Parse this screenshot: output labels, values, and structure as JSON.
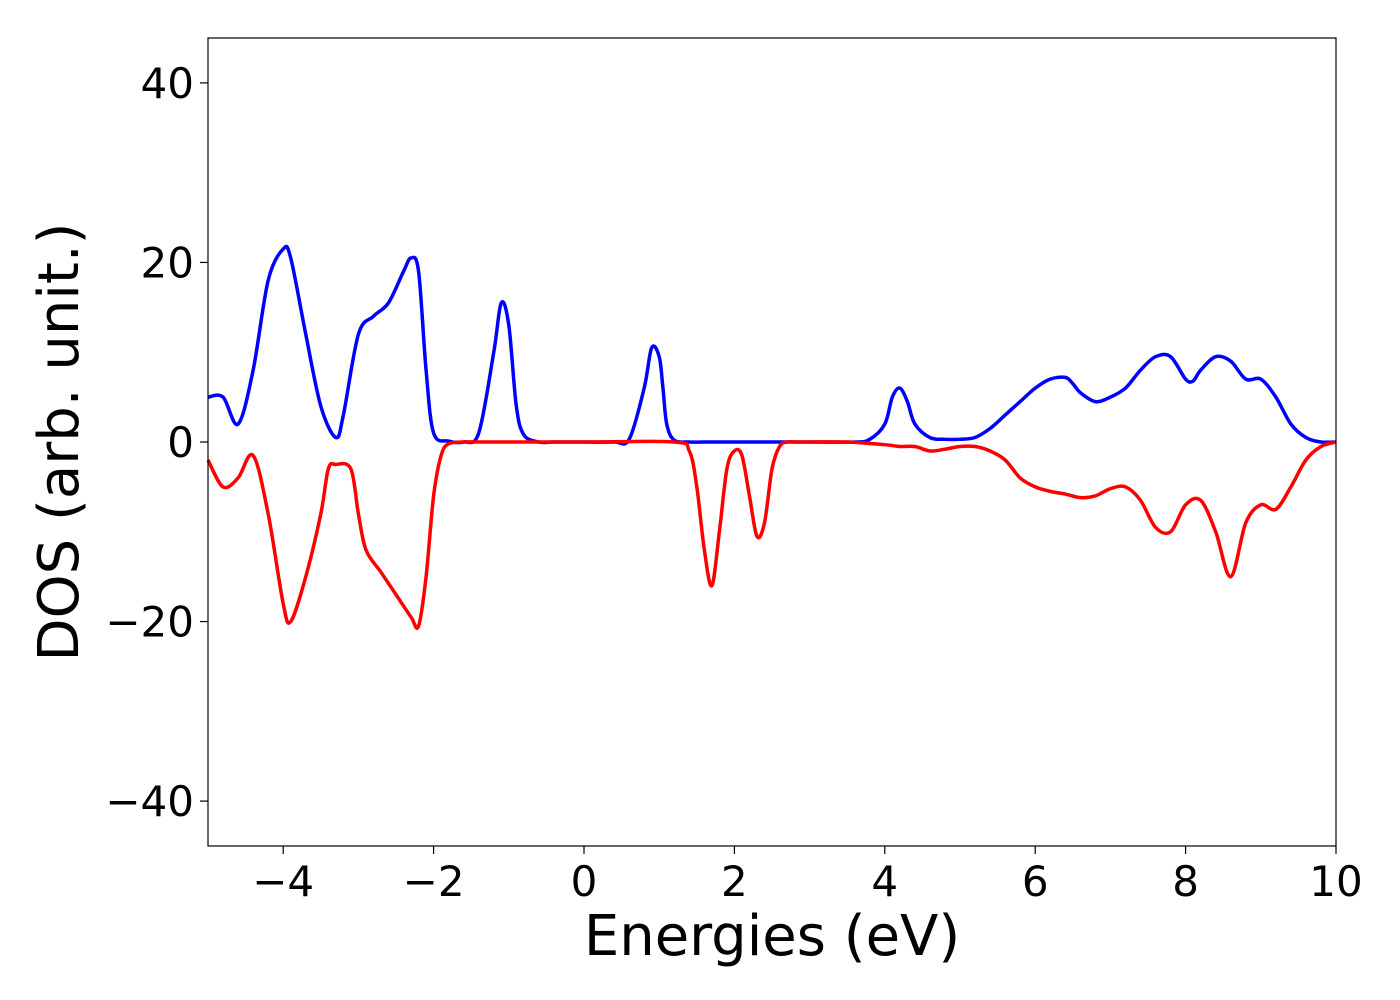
{
  "chart_data": {
    "type": "line",
    "title": "",
    "xlabel": "Energies (eV)",
    "ylabel": "DOS (arb. unit.)",
    "xlim": [
      -5,
      10
    ],
    "ylim": [
      -45,
      45
    ],
    "xticks": [
      -4,
      -2,
      0,
      2,
      4,
      6,
      8,
      10
    ],
    "xtick_labels": [
      "−4",
      "−2",
      "0",
      "2",
      "4",
      "6",
      "8",
      "10"
    ],
    "yticks": [
      -40,
      -20,
      0,
      20,
      40
    ],
    "ytick_labels": [
      "−40",
      "−20",
      "0",
      "20",
      "40"
    ],
    "grid": false,
    "legend": "none",
    "series": [
      {
        "color": "#0000ff",
        "x": [
          -5,
          -4.8,
          -4.6,
          -4.4,
          -4.2,
          -4.0,
          -3.9,
          -3.7,
          -3.5,
          -3.3,
          -3.2,
          -3.0,
          -2.8,
          -2.6,
          -2.4,
          -2.3,
          -2.2,
          -2.1,
          -2.0,
          -1.8,
          -1.6,
          -1.4,
          -1.2,
          -1.1,
          -1.0,
          -0.9,
          -0.8,
          -0.6,
          -0.4,
          0,
          0.4,
          0.6,
          0.8,
          0.9,
          1.0,
          1.05,
          1.1,
          1.2,
          1.4,
          1.6,
          2,
          3,
          3.6,
          3.8,
          4.0,
          4.1,
          4.2,
          4.3,
          4.4,
          4.6,
          4.8,
          5.0,
          5.2,
          5.4,
          5.6,
          5.8,
          6.0,
          6.2,
          6.4,
          6.5,
          6.6,
          6.8,
          7.0,
          7.2,
          7.4,
          7.6,
          7.8,
          8.0,
          8.1,
          8.2,
          8.4,
          8.6,
          8.8,
          9.0,
          9.2,
          9.4,
          9.6,
          9.8,
          10.0
        ],
        "y": [
          5,
          5,
          2,
          8,
          18,
          21.5,
          20.5,
          12,
          4,
          0.5,
          3,
          12,
          14,
          15.5,
          19,
          20.5,
          19,
          8,
          1,
          0.1,
          0,
          1,
          10,
          15.5,
          13,
          4,
          0.8,
          0,
          0,
          0,
          0,
          0.3,
          6,
          10.5,
          9.5,
          6,
          2,
          0.2,
          0,
          0,
          0,
          0,
          0,
          0.3,
          2,
          5,
          6,
          4.5,
          2,
          0.5,
          0.3,
          0.3,
          0.5,
          1.5,
          3,
          4.5,
          6,
          7,
          7.2,
          6.5,
          5.5,
          4.5,
          5,
          6,
          8,
          9.5,
          9.5,
          7,
          6.8,
          8,
          9.5,
          9,
          7,
          7,
          5,
          2,
          0.5,
          0,
          0
        ]
      },
      {
        "color": "#ff0000",
        "x": [
          -5,
          -4.8,
          -4.6,
          -4.4,
          -4.2,
          -4.0,
          -3.9,
          -3.7,
          -3.5,
          -3.4,
          -3.3,
          -3.1,
          -3.0,
          -2.9,
          -2.7,
          -2.5,
          -2.3,
          -2.2,
          -2.1,
          -2.0,
          -1.9,
          -1.8,
          -1.6,
          -1.4,
          0,
          1.2,
          1.4,
          1.5,
          1.6,
          1.7,
          1.8,
          1.9,
          2.0,
          2.1,
          2.2,
          2.3,
          2.4,
          2.5,
          2.6,
          2.7,
          2.8,
          3.0,
          3.5,
          4.0,
          4.2,
          4.4,
          4.6,
          4.8,
          5.0,
          5.2,
          5.4,
          5.6,
          5.8,
          6.0,
          6.2,
          6.4,
          6.6,
          6.8,
          7.0,
          7.2,
          7.4,
          7.6,
          7.8,
          8.0,
          8.2,
          8.4,
          8.6,
          8.8,
          9.0,
          9.2,
          9.4,
          9.6,
          9.8,
          10.0
        ],
        "y": [
          -2,
          -5,
          -4,
          -1.5,
          -8,
          -18,
          -20,
          -15,
          -8,
          -3,
          -2.5,
          -3,
          -8,
          -12,
          -14.5,
          -17,
          -19.5,
          -20.5,
          -15,
          -6,
          -1.5,
          -0.2,
          0,
          0,
          0,
          0,
          -1,
          -5,
          -12,
          -16,
          -10,
          -3,
          -1,
          -1.5,
          -6,
          -10.5,
          -9,
          -3,
          -0.5,
          0,
          0,
          0,
          0,
          -0.3,
          -0.5,
          -0.5,
          -1,
          -0.8,
          -0.5,
          -0.5,
          -1,
          -2,
          -4,
          -5,
          -5.5,
          -5.8,
          -6.2,
          -6,
          -5.2,
          -5,
          -6.5,
          -9.5,
          -10,
          -7,
          -6.5,
          -10,
          -15,
          -9,
          -7,
          -7.5,
          -5,
          -2,
          -0.5,
          0
        ]
      }
    ]
  }
}
